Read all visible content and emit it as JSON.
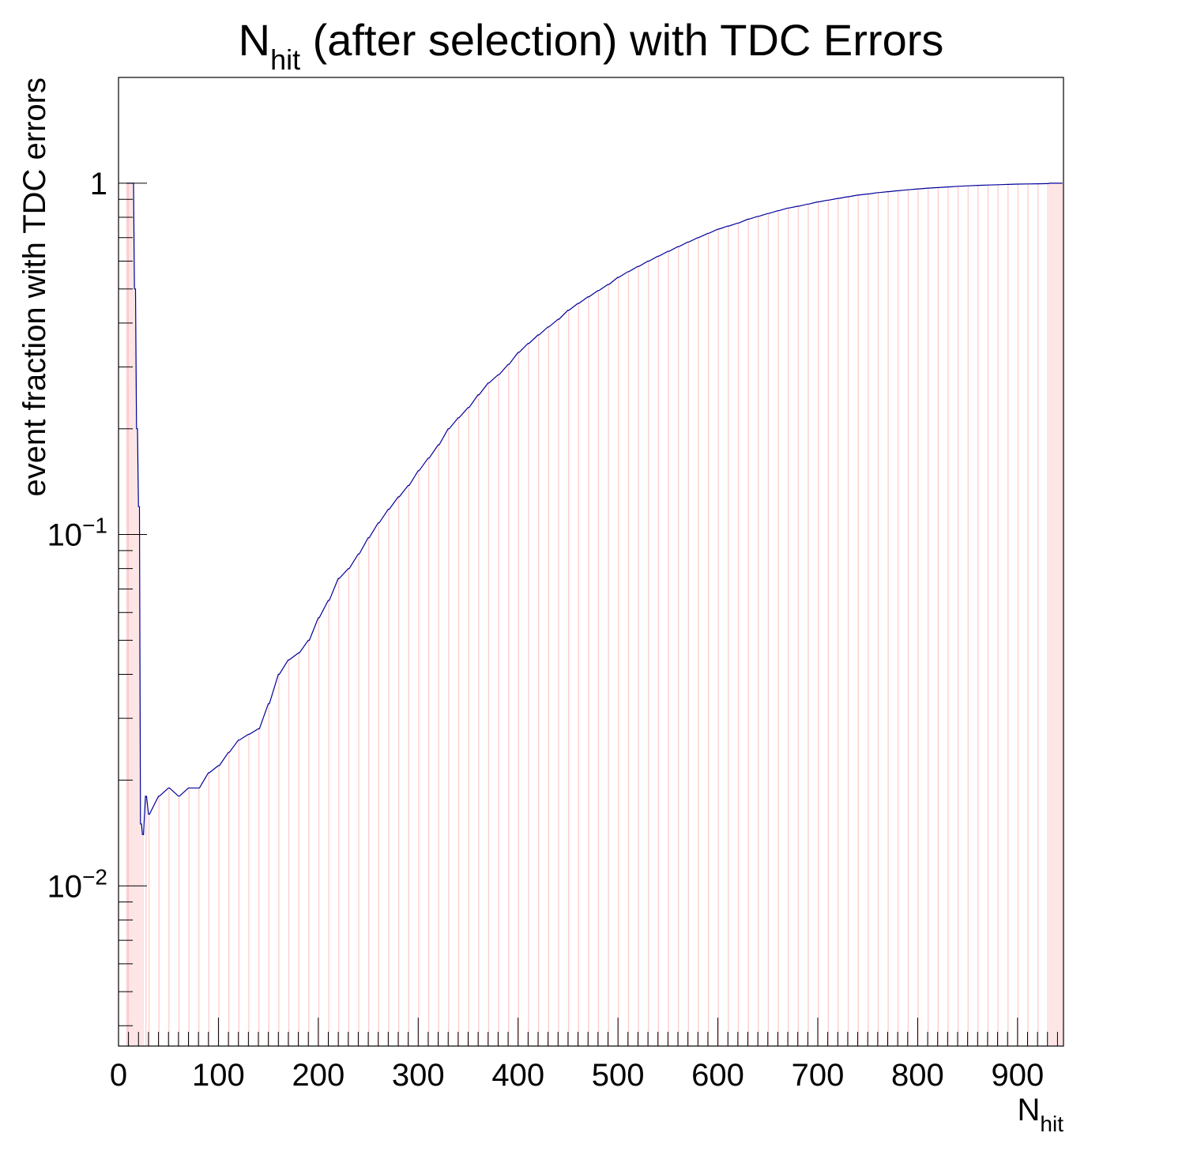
{
  "chart_data": {
    "type": "bar",
    "title": {
      "main": "N",
      "sub": "hit",
      "rest": " (after selection) with TDC Errors"
    },
    "xlabel": {
      "main": "N",
      "sub": "hit"
    },
    "ylabel": "event fraction with TDC errors",
    "xlim": [
      0,
      946
    ],
    "ylim": [
      0.0035,
      2.0
    ],
    "yscale": "log",
    "x_tick_labels": [
      "0",
      "100",
      "200",
      "300",
      "400",
      "500",
      "600",
      "700",
      "800",
      "900"
    ],
    "y_tick_labels": [
      {
        "value": 1,
        "base": "1",
        "exp": ""
      },
      {
        "value": 0.1,
        "base": "10",
        "exp": "−1"
      },
      {
        "value": 0.01,
        "base": "10",
        "exp": "−2"
      }
    ],
    "bin_width": 1,
    "fill_color": "#fccbcc",
    "line_color": "#000099",
    "grid": false,
    "legend": "none",
    "series": [
      {
        "x": [
          8,
          9,
          10,
          12,
          14,
          16,
          18,
          20,
          22,
          24,
          27,
          30,
          40,
          50,
          60,
          70,
          80,
          90,
          100,
          110,
          120,
          130,
          140,
          150,
          160,
          170,
          180,
          190,
          200,
          210,
          220,
          230,
          240,
          250,
          260,
          270,
          280,
          290,
          300,
          310,
          320,
          330,
          340,
          350,
          360,
          370,
          380,
          390,
          400,
          410,
          420,
          430,
          440,
          450,
          460,
          470,
          480,
          490,
          500,
          510,
          520,
          530,
          540,
          550,
          560,
          570,
          580,
          590,
          600,
          610,
          620,
          630,
          640,
          650,
          660,
          670,
          680,
          690,
          700,
          710,
          720,
          730,
          740,
          750,
          760,
          770,
          780,
          790,
          800,
          810,
          820,
          830,
          840,
          850,
          860,
          870,
          880,
          890,
          900,
          910,
          920,
          930,
          932,
          934,
          936,
          938,
          940,
          942,
          944
        ],
        "y": [
          1.0,
          1.0,
          1.0,
          1.0,
          1.0,
          0.5,
          0.2,
          0.12,
          0.015,
          0.014,
          0.018,
          0.016,
          0.018,
          0.019,
          0.018,
          0.019,
          0.019,
          0.021,
          0.022,
          0.024,
          0.026,
          0.027,
          0.028,
          0.033,
          0.04,
          0.044,
          0.046,
          0.05,
          0.058,
          0.065,
          0.075,
          0.08,
          0.088,
          0.098,
          0.108,
          0.118,
          0.128,
          0.138,
          0.152,
          0.165,
          0.18,
          0.2,
          0.215,
          0.23,
          0.25,
          0.27,
          0.285,
          0.305,
          0.33,
          0.35,
          0.37,
          0.39,
          0.41,
          0.435,
          0.455,
          0.475,
          0.495,
          0.515,
          0.54,
          0.56,
          0.58,
          0.6,
          0.62,
          0.64,
          0.66,
          0.68,
          0.7,
          0.72,
          0.74,
          0.755,
          0.77,
          0.79,
          0.805,
          0.82,
          0.835,
          0.85,
          0.86,
          0.872,
          0.885,
          0.895,
          0.905,
          0.915,
          0.925,
          0.932,
          0.94,
          0.946,
          0.952,
          0.958,
          0.963,
          0.968,
          0.972,
          0.976,
          0.98,
          0.983,
          0.986,
          0.988,
          0.99,
          0.992,
          0.994,
          0.995,
          0.996,
          0.997,
          1.0,
          1.0,
          1.0,
          1.0,
          1.0,
          1.0,
          1.0
        ]
      }
    ]
  }
}
